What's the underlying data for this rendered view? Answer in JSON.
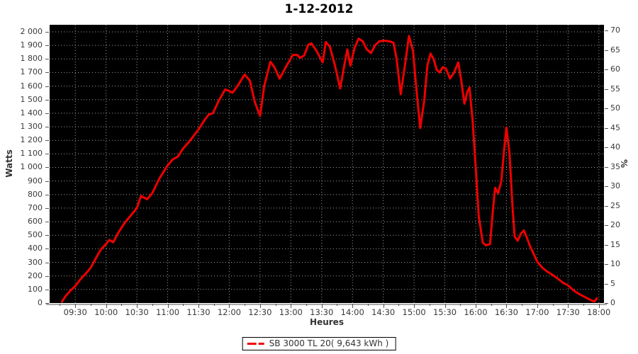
{
  "title": "1-12-2012",
  "colors": {
    "series_red": "#ee0000",
    "plot_background": "#000000",
    "grid": "#9e9e9e",
    "tick_text": "#3a3a3a",
    "axis_line": "#a9a9a9"
  },
  "chart_data": {
    "type": "line",
    "title": "1-12-2012",
    "xlabel": "Heures",
    "ylabel_left": "Watts",
    "ylabel_right": "%",
    "grid": true,
    "plot_bg": "#000000",
    "grid_color": "#9e9e9e",
    "x_domain": [
      "09:05",
      "18:05"
    ],
    "y_left": {
      "min": 0,
      "max": 2000,
      "step": 100,
      "plot_top_value": 2052
    },
    "y_right": {
      "min": 0,
      "max": 70,
      "step": 5
    },
    "y_left_labels": [
      "2 000",
      "1 900",
      "1 800",
      "1 700",
      "1 600",
      "1 500",
      "1 400",
      "1 300",
      "1 200",
      "1 100",
      "1 000",
      "900",
      "800",
      "700",
      "600",
      "500",
      "400",
      "300",
      "200",
      "100",
      "0"
    ],
    "y_right_labels": [
      "70",
      "65",
      "60",
      "55",
      "50",
      "45",
      "40",
      "35",
      "30",
      "25",
      "20",
      "15",
      "10",
      "5",
      "0"
    ],
    "x_tick_labels": [
      "09:30",
      "10:00",
      "10:30",
      "11:00",
      "11:30",
      "12:00",
      "12:30",
      "13:00",
      "13:30",
      "14:00",
      "14:30",
      "15:00",
      "15:30",
      "16:00",
      "16:30",
      "17:00",
      "17:30",
      "18:00"
    ],
    "x_minor_tick_minutes": 15,
    "legend": {
      "label": "SB 3000 TL 20( 9,643 kWh )",
      "color": "#ee0000",
      "position": "bottom-center"
    },
    "series": [
      {
        "name": "SB 3000 TL 20( 9,643 kWh )",
        "color": "#ee0000",
        "width": 3,
        "points": [
          [
            "09:17",
            10
          ],
          [
            "09:20",
            45
          ],
          [
            "09:25",
            90
          ],
          [
            "09:30",
            125
          ],
          [
            "09:35",
            175
          ],
          [
            "09:40",
            215
          ],
          [
            "09:45",
            260
          ],
          [
            "09:50",
            330
          ],
          [
            "09:55",
            395
          ],
          [
            "10:00",
            435
          ],
          [
            "10:03",
            465
          ],
          [
            "10:07",
            448
          ],
          [
            "10:12",
            520
          ],
          [
            "10:18",
            590
          ],
          [
            "10:24",
            645
          ],
          [
            "10:30",
            700
          ],
          [
            "10:34",
            790
          ],
          [
            "10:40",
            765
          ],
          [
            "10:45",
            810
          ],
          [
            "10:52",
            920
          ],
          [
            "11:00",
            1015
          ],
          [
            "11:05",
            1060
          ],
          [
            "11:10",
            1080
          ],
          [
            "11:15",
            1140
          ],
          [
            "11:21",
            1190
          ],
          [
            "11:30",
            1280
          ],
          [
            "11:36",
            1350
          ],
          [
            "11:40",
            1390
          ],
          [
            "11:44",
            1400
          ],
          [
            "11:50",
            1495
          ],
          [
            "11:56",
            1575
          ],
          [
            "12:00",
            1565
          ],
          [
            "12:03",
            1550
          ],
          [
            "12:08",
            1600
          ],
          [
            "12:15",
            1685
          ],
          [
            "12:20",
            1640
          ],
          [
            "12:25",
            1480
          ],
          [
            "12:30",
            1380
          ],
          [
            "12:34",
            1600
          ],
          [
            "12:40",
            1780
          ],
          [
            "12:44",
            1740
          ],
          [
            "12:49",
            1655
          ],
          [
            "12:55",
            1740
          ],
          [
            "13:02",
            1830
          ],
          [
            "13:06",
            1830
          ],
          [
            "13:09",
            1808
          ],
          [
            "13:13",
            1826
          ],
          [
            "13:17",
            1905
          ],
          [
            "13:20",
            1915
          ],
          [
            "13:25",
            1860
          ],
          [
            "13:31",
            1775
          ],
          [
            "13:34",
            1925
          ],
          [
            "13:38",
            1890
          ],
          [
            "13:43",
            1750
          ],
          [
            "13:48",
            1582
          ],
          [
            "13:52",
            1750
          ],
          [
            "13:55",
            1870
          ],
          [
            "13:58",
            1750
          ],
          [
            "14:02",
            1880
          ],
          [
            "14:06",
            1950
          ],
          [
            "14:10",
            1930
          ],
          [
            "14:14",
            1870
          ],
          [
            "14:18",
            1843
          ],
          [
            "14:22",
            1900
          ],
          [
            "14:26",
            1930
          ],
          [
            "14:31",
            1935
          ],
          [
            "14:36",
            1930
          ],
          [
            "14:40",
            1920
          ],
          [
            "14:43",
            1800
          ],
          [
            "14:47",
            1540
          ],
          [
            "14:51",
            1750
          ],
          [
            "14:55",
            1970
          ],
          [
            "14:59",
            1860
          ],
          [
            "15:02",
            1600
          ],
          [
            "15:06",
            1290
          ],
          [
            "15:10",
            1500
          ],
          [
            "15:13",
            1750
          ],
          [
            "15:16",
            1840
          ],
          [
            "15:19",
            1800
          ],
          [
            "15:22",
            1720
          ],
          [
            "15:25",
            1700
          ],
          [
            "15:28",
            1740
          ],
          [
            "15:31",
            1730
          ],
          [
            "15:35",
            1655
          ],
          [
            "15:39",
            1700
          ],
          [
            "15:43",
            1775
          ],
          [
            "15:46",
            1640
          ],
          [
            "15:49",
            1470
          ],
          [
            "15:52",
            1560
          ],
          [
            "15:54",
            1590
          ],
          [
            "15:57",
            1350
          ],
          [
            "16:00",
            1010
          ],
          [
            "16:03",
            640
          ],
          [
            "16:07",
            445
          ],
          [
            "16:10",
            425
          ],
          [
            "16:14",
            435
          ],
          [
            "16:17",
            700
          ],
          [
            "16:19",
            850
          ],
          [
            "16:22",
            810
          ],
          [
            "16:25",
            900
          ],
          [
            "16:28",
            1150
          ],
          [
            "16:30",
            1295
          ],
          [
            "16:33",
            1100
          ],
          [
            "16:36",
            700
          ],
          [
            "16:38",
            490
          ],
          [
            "16:41",
            460
          ],
          [
            "16:44",
            510
          ],
          [
            "16:47",
            535
          ],
          [
            "16:50",
            480
          ],
          [
            "16:53",
            420
          ],
          [
            "16:56",
            370
          ],
          [
            "17:00",
            305
          ],
          [
            "17:05",
            260
          ],
          [
            "17:10",
            230
          ],
          [
            "17:15",
            207
          ],
          [
            "17:20",
            180
          ],
          [
            "17:25",
            150
          ],
          [
            "17:30",
            130
          ],
          [
            "17:35",
            95
          ],
          [
            "17:40",
            70
          ],
          [
            "17:45",
            50
          ],
          [
            "17:50",
            30
          ],
          [
            "17:54",
            15
          ],
          [
            "17:56",
            12
          ],
          [
            "17:58",
            35
          ]
        ]
      }
    ]
  }
}
